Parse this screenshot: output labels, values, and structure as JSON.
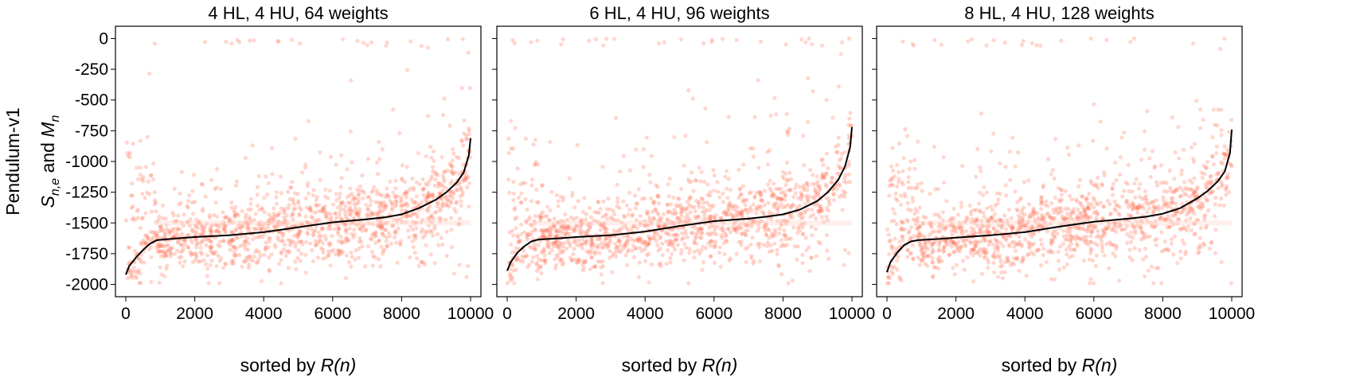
{
  "figure": {
    "row_label": "Pendulum-v1",
    "ylabel": {
      "main": "S",
      "sub1": "n,e",
      "mid": " and ",
      "main2": "M",
      "sub2": "n"
    },
    "xlabel": {
      "prefix": "sorted by ",
      "italic": "R(n)"
    }
  },
  "chart_data": [
    {
      "type": "scatter",
      "title": "4 HL, 4 HU, 64 weights",
      "xlim": [
        -300,
        10300
      ],
      "ylim": [
        -2100,
        100
      ],
      "xticks": [
        0,
        2000,
        4000,
        6000,
        8000,
        10000
      ],
      "yticks": [
        0,
        -250,
        -500,
        -750,
        -1000,
        -1250,
        -1500,
        -1750,
        -2000
      ],
      "ytick_labels_shown": true,
      "colors": {
        "points": "#ff6e54",
        "line": "#000000"
      },
      "series": [
        {
          "kind": "line",
          "x": [
            0,
            100,
            300,
            500,
            700,
            900,
            1500,
            2000,
            3000,
            4000,
            5000,
            6000,
            7000,
            7500,
            8000,
            8500,
            9000,
            9300,
            9600,
            9800,
            9950,
            10000
          ],
          "y": [
            -1920,
            -1850,
            -1780,
            -1720,
            -1670,
            -1640,
            -1625,
            -1615,
            -1600,
            -1575,
            -1535,
            -1495,
            -1470,
            -1455,
            -1430,
            -1380,
            -1310,
            -1250,
            -1170,
            -1090,
            -950,
            -810
          ]
        }
      ]
    },
    {
      "type": "scatter",
      "title": "6 HL, 4 HU, 96 weights",
      "xlim": [
        -300,
        10300
      ],
      "ylim": [
        -2100,
        100
      ],
      "xticks": [
        0,
        2000,
        4000,
        6000,
        8000,
        10000
      ],
      "yticks": [
        0,
        -250,
        -500,
        -750,
        -1000,
        -1250,
        -1500,
        -1750,
        -2000
      ],
      "ytick_labels_shown": false,
      "colors": {
        "points": "#ff6e54",
        "line": "#000000"
      },
      "series": [
        {
          "kind": "line",
          "x": [
            0,
            100,
            300,
            500,
            700,
            900,
            1500,
            2000,
            3000,
            4000,
            5000,
            6000,
            7000,
            7500,
            8000,
            8500,
            9000,
            9300,
            9600,
            9800,
            9950,
            10000
          ],
          "y": [
            -1890,
            -1820,
            -1740,
            -1690,
            -1650,
            -1635,
            -1625,
            -1615,
            -1600,
            -1570,
            -1525,
            -1485,
            -1465,
            -1450,
            -1430,
            -1390,
            -1320,
            -1250,
            -1150,
            -1040,
            -880,
            -720
          ]
        }
      ]
    },
    {
      "type": "scatter",
      "title": "8 HL, 4 HU, 128 weights",
      "xlim": [
        -300,
        10300
      ],
      "ylim": [
        -2100,
        100
      ],
      "xticks": [
        0,
        2000,
        4000,
        6000,
        8000,
        10000
      ],
      "yticks": [
        0,
        -250,
        -500,
        -750,
        -1000,
        -1250,
        -1500,
        -1750,
        -2000
      ],
      "ytick_labels_shown": false,
      "colors": {
        "points": "#ff6e54",
        "line": "#000000"
      },
      "series": [
        {
          "kind": "line",
          "x": [
            0,
            100,
            300,
            500,
            700,
            900,
            1500,
            2000,
            3000,
            4000,
            5000,
            6000,
            7000,
            7500,
            8000,
            8500,
            9000,
            9300,
            9600,
            9800,
            9950,
            10000
          ],
          "y": [
            -1900,
            -1820,
            -1740,
            -1680,
            -1650,
            -1640,
            -1630,
            -1620,
            -1600,
            -1575,
            -1530,
            -1490,
            -1465,
            -1450,
            -1425,
            -1380,
            -1300,
            -1240,
            -1160,
            -1080,
            -930,
            -740
          ]
        }
      ]
    }
  ]
}
